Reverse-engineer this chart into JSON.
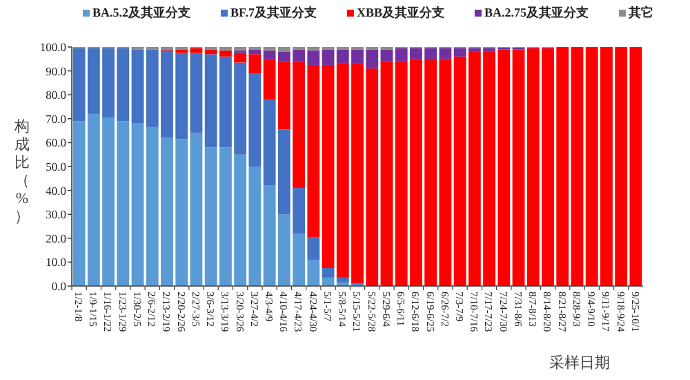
{
  "chart_data": {
    "type": "bar",
    "stacked": true,
    "legend": "top",
    "xlabel": "采样日期",
    "ylabel": "构成比（%）",
    "categories": [
      "1/2-1/8",
      "1/9-1/15",
      "1/16-1/22",
      "1/23-1/29",
      "1/30-2/5",
      "2/6-2/12",
      "2/13-2/19",
      "2/20-2/26",
      "2/27-3/5",
      "3/6-3/12",
      "3/13-3/19",
      "3/20-3/26",
      "3/27-4/2",
      "4/3-4/9",
      "4/10-4/16",
      "4/17-4/23",
      "4/24-4/30",
      "5/1-5/7",
      "5/8-5/14",
      "5/15-5/21",
      "5/22-5/28",
      "5/29-6/4",
      "6/5-6/11",
      "6/12-6/18",
      "6/19-6/25",
      "6/26-7/2",
      "7/3-7/9",
      "7/10-7/16",
      "7/17-7/23",
      "7/24-7/30",
      "7/31-8/6",
      "8/7-8/13",
      "8/14-8/20",
      "8/21-8/27",
      "8/28-9/3",
      "9/4-9/10",
      "9/11-9/17",
      "9/18-9/24",
      "9/25-10/1"
    ],
    "ylim": [
      0,
      100
    ],
    "yticks": [
      {
        "value": 0,
        "label": "0.0"
      },
      {
        "value": 10,
        "label": "10.0"
      },
      {
        "value": 20,
        "label": "20.0"
      },
      {
        "value": 30,
        "label": "30.0"
      },
      {
        "value": 40,
        "label": "40.0"
      },
      {
        "value": 50,
        "label": "50.0"
      },
      {
        "value": 60,
        "label": "60.0"
      },
      {
        "value": 70,
        "label": "70.0"
      },
      {
        "value": 80,
        "label": "80.0"
      },
      {
        "value": 90,
        "label": "90.0"
      },
      {
        "value": 100,
        "label": "100.0"
      }
    ],
    "series": [
      {
        "name": "BA.5.2及其亚分支",
        "color": "#5b9bd5",
        "values": [
          69,
          72,
          70.5,
          69,
          68,
          66.5,
          62,
          61.5,
          64,
          58,
          58,
          55,
          50,
          42,
          30,
          22,
          11,
          3.5,
          1.5,
          0.5,
          0,
          0,
          0,
          0,
          0,
          0,
          0,
          0,
          0,
          0,
          0,
          0,
          0,
          0,
          0,
          0,
          0,
          0,
          0
        ]
      },
      {
        "name": "BF.7及其亚分支",
        "color": "#4472c4",
        "values": [
          30.5,
          27.5,
          29,
          30.5,
          31,
          32.5,
          36.5,
          36,
          33.5,
          39,
          38,
          38.5,
          39,
          36,
          35.5,
          19,
          9.5,
          4,
          2,
          0.5,
          0,
          0,
          0,
          0,
          0,
          0,
          0,
          0,
          0,
          0,
          0,
          0,
          0,
          0,
          0,
          0,
          0,
          0,
          0
        ]
      },
      {
        "name": "XBB及其亚分支",
        "color": "#ff0000",
        "values": [
          0,
          0,
          0,
          0,
          0,
          0,
          0.5,
          1.5,
          2,
          2,
          2.5,
          4,
          8,
          17,
          28.5,
          53,
          72,
          85,
          89.5,
          92,
          91,
          94,
          94,
          95,
          94.5,
          95,
          96,
          98,
          98,
          99,
          99,
          99.5,
          99.5,
          100,
          100,
          100,
          100,
          100,
          100
        ]
      },
      {
        "name": "BA.2.75及其亚分支",
        "color": "#7030a0",
        "values": [
          0,
          0,
          0,
          0,
          0,
          0,
          0,
          0,
          0,
          0,
          0,
          1,
          2,
          3.5,
          4,
          5,
          6,
          6.5,
          6,
          6,
          8,
          5,
          5.5,
          4.5,
          5,
          4.5,
          3.5,
          1.5,
          1.5,
          0.8,
          0.8,
          0.3,
          0.3,
          0,
          0,
          0,
          0,
          0,
          0
        ]
      },
      {
        "name": "其它",
        "color": "#8c8c8c",
        "values": [
          0.5,
          0.5,
          0.5,
          0.5,
          1,
          1,
          1,
          1,
          0.5,
          1,
          1.5,
          1.5,
          1,
          1.5,
          2,
          1,
          1.5,
          1,
          1,
          1,
          1,
          1,
          0.5,
          0.5,
          0.5,
          0.5,
          0.5,
          0.5,
          0.5,
          0.2,
          0.2,
          0.2,
          0.2,
          0,
          0,
          0,
          0,
          0,
          0
        ]
      }
    ]
  }
}
